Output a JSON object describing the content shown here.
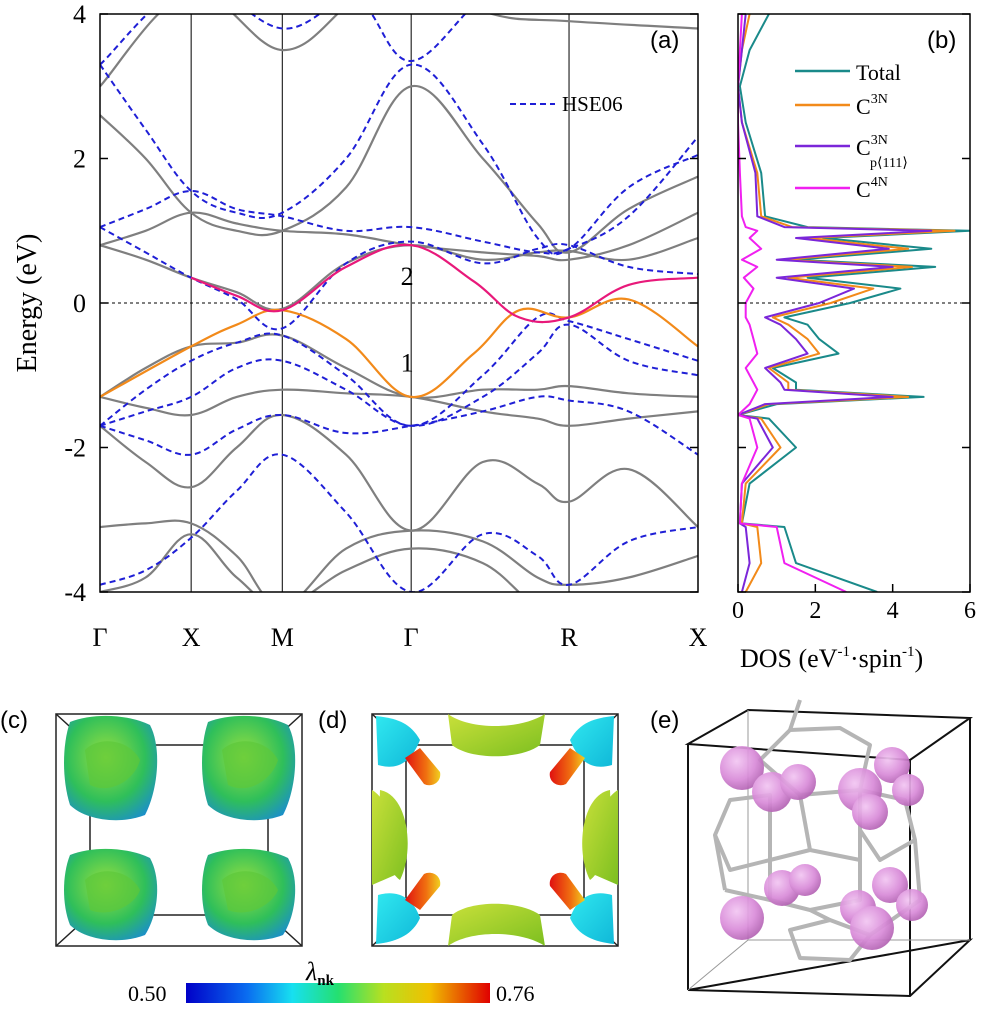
{
  "colors": {
    "pbe": "#7f7f7f",
    "hse": "#1f1fd6",
    "band_highlight_1": "#f28a1a",
    "band_highlight_2": "#e8197a",
    "dos_total": "#1a8a8a",
    "dos_c3n": "#f28a1a",
    "dos_c3n_p111": "#7b26d9",
    "dos_c4n": "#f020f0",
    "sphere": "#d98bd9",
    "frame": "#b5b5b5"
  },
  "chart_data": [
    {
      "type": "line",
      "panel_label": "(a)",
      "ylabel": "Energy (eV)",
      "ylim": [
        -4,
        4
      ],
      "yticks": [
        -4,
        -2,
        0,
        2,
        4
      ],
      "kpoints": [
        {
          "label": "Γ",
          "x": 0
        },
        {
          "label": "X",
          "x": 1
        },
        {
          "label": "M",
          "x": 2
        },
        {
          "label": "Γ",
          "x": 3.414
        },
        {
          "label": "R",
          "x": 5.146
        },
        {
          "label": "X",
          "x": 6.561
        }
      ],
      "fermi_level": 0,
      "legend": [
        {
          "name": "HSE06",
          "style": "dashed"
        }
      ],
      "band_labels": [
        {
          "text": "1",
          "x": 3.37,
          "y": -0.95
        },
        {
          "text": "2",
          "x": 3.37,
          "y": 0.25
        }
      ],
      "series": [
        {
          "kind": "highlight1",
          "x": [
            0,
            1,
            1.5,
            2,
            2.7,
            3.414,
            4.1,
            4.6,
            5.146,
            5.8,
            6.561
          ],
          "y": [
            -1.3,
            -0.6,
            -0.3,
            -0.1,
            -0.5,
            -1.3,
            -0.7,
            -0.1,
            -0.2,
            0.05,
            -0.6
          ]
        },
        {
          "kind": "highlight2",
          "x": [
            1,
            1.5,
            2,
            2.7,
            3.414,
            4.1,
            4.6,
            5.146,
            5.8,
            6.561
          ],
          "y": [
            0.35,
            0.1,
            -0.1,
            0.5,
            0.8,
            0.3,
            -0.2,
            -0.2,
            0.25,
            0.35
          ]
        },
        {
          "kind": "pbe",
          "x": [
            0,
            0.5,
            1,
            1.5,
            2,
            2.7,
            3.414,
            4.2,
            4.8,
            5.146,
            5.8,
            6.561
          ],
          "y": [
            0.8,
            0.6,
            0.35,
            0.15,
            -0.08,
            0.55,
            0.8,
            0.6,
            0.7,
            0.72,
            0.6,
            0.9
          ]
        },
        {
          "kind": "pbe",
          "x": [
            0,
            0.5,
            1,
            1.5,
            2,
            2.7,
            3.414,
            4.2,
            4.8,
            5.146,
            5.8,
            6.561
          ],
          "y": [
            0.8,
            1.0,
            1.25,
            1.1,
            1.0,
            0.95,
            0.8,
            0.7,
            0.65,
            0.6,
            0.8,
            1.25
          ]
        },
        {
          "kind": "pbe",
          "x": [
            0,
            0.5,
            1,
            1.5,
            2,
            2.7,
            3.414,
            4.2,
            4.8,
            5.146,
            5.8,
            6.561
          ],
          "y": [
            2.6,
            2.0,
            1.25,
            1.0,
            1.0,
            1.6,
            3.0,
            2.0,
            1.1,
            0.7,
            1.3,
            1.75
          ]
        },
        {
          "kind": "pbe",
          "x": [
            0,
            1,
            2,
            2.8,
            3.414,
            4.3,
            5.146,
            6.561
          ],
          "y": [
            3.0,
            4.3,
            3.5,
            4.2,
            4.5,
            4.0,
            3.9,
            3.8
          ]
        },
        {
          "kind": "pbe",
          "x": [
            0,
            0.5,
            1,
            1.5,
            2,
            2.7,
            3.414,
            4.2,
            4.8,
            5.146,
            5.8,
            6.561
          ],
          "y": [
            -1.3,
            -0.9,
            -0.6,
            -0.55,
            -0.45,
            -0.9,
            -1.3,
            -1.2,
            -1.2,
            -1.15,
            -1.25,
            -1.3
          ]
        },
        {
          "kind": "pbe",
          "x": [
            0,
            0.5,
            1,
            1.5,
            2,
            2.7,
            3.414,
            4.2,
            4.8,
            5.146,
            5.8,
            6.561
          ],
          "y": [
            -1.3,
            -1.45,
            -1.55,
            -1.3,
            -1.2,
            -1.25,
            -1.3,
            -1.5,
            -1.6,
            -1.7,
            -1.6,
            -1.5
          ]
        },
        {
          "kind": "pbe",
          "x": [
            0,
            0.5,
            1,
            1.5,
            2,
            2.7,
            3.414,
            4.2,
            4.8,
            5.146,
            5.8,
            6.561
          ],
          "y": [
            -1.7,
            -2.2,
            -2.55,
            -2.0,
            -1.55,
            -2.1,
            -3.15,
            -2.2,
            -2.5,
            -2.75,
            -2.3,
            -3.1
          ]
        },
        {
          "kind": "pbe",
          "x": [
            0,
            0.5,
            1,
            1.5,
            2,
            2.7,
            3.414,
            4.2,
            4.8,
            5.146,
            5.8,
            6.561
          ],
          "y": [
            -3.1,
            -3.05,
            -3.05,
            -3.5,
            -4.2,
            -3.4,
            -3.15,
            -3.3,
            -3.8,
            -3.9,
            -3.8,
            -3.5
          ]
        },
        {
          "kind": "pbe",
          "x": [
            0,
            0.5,
            1,
            1.5,
            2,
            2.7,
            3.414,
            4.2,
            4.8,
            5.146,
            5.8,
            6.561
          ],
          "y": [
            -4.0,
            -3.8,
            -3.2,
            -3.8,
            -4.2,
            -3.7,
            -3.4,
            -3.6,
            -4.2,
            -4.1,
            -4.2,
            -4.0
          ]
        },
        {
          "kind": "hse",
          "x": [
            0,
            0.5,
            1,
            1.5,
            2,
            2.7,
            3.414,
            4.2,
            4.8,
            5.146,
            5.8,
            6.561
          ],
          "y": [
            1.05,
            0.7,
            0.35,
            0.05,
            -0.35,
            0.55,
            0.85,
            0.55,
            0.75,
            0.8,
            0.5,
            0.4
          ]
        },
        {
          "kind": "hse",
          "x": [
            0,
            0.5,
            1,
            1.5,
            2,
            2.7,
            3.414,
            4.2,
            4.8,
            5.146,
            5.8,
            6.561
          ],
          "y": [
            1.05,
            1.3,
            1.55,
            1.3,
            1.2,
            1.0,
            1.05,
            0.85,
            0.7,
            0.75,
            1.2,
            2.3
          ]
        },
        {
          "kind": "hse",
          "x": [
            0,
            0.5,
            1,
            1.5,
            2,
            2.7,
            3.414,
            4.2,
            4.8,
            5.146,
            5.8,
            6.561
          ],
          "y": [
            3.3,
            2.4,
            1.55,
            1.25,
            1.25,
            2.0,
            3.3,
            2.2,
            0.9,
            0.75,
            1.6,
            2.05
          ]
        },
        {
          "kind": "hse",
          "x": [
            0,
            1,
            2,
            2.8,
            3.414,
            4.3,
            5.146,
            6.561
          ],
          "y": [
            3.3,
            4.4,
            3.8,
            4.2,
            3.35,
            4.3,
            4.3,
            4.2
          ]
        },
        {
          "kind": "hse",
          "x": [
            0,
            0.5,
            1,
            1.5,
            2,
            2.7,
            3.414,
            4.2,
            4.8,
            5.146,
            5.8,
            6.561
          ],
          "y": [
            -1.7,
            -1.2,
            -0.8,
            -0.55,
            -0.45,
            -1.0,
            -1.7,
            -1.0,
            -0.2,
            -0.25,
            -0.5,
            -0.8
          ]
        },
        {
          "kind": "hse",
          "x": [
            0,
            0.5,
            1,
            1.5,
            2,
            2.7,
            3.414,
            4.2,
            4.8,
            5.146,
            5.8,
            6.561
          ],
          "y": [
            -1.7,
            -1.5,
            -1.3,
            -0.9,
            -0.8,
            -1.2,
            -1.7,
            -1.3,
            -0.7,
            -0.3,
            -0.8,
            -1.0
          ]
        },
        {
          "kind": "hse",
          "x": [
            0,
            0.5,
            1,
            1.5,
            2,
            2.7,
            3.414,
            4.2,
            4.8,
            5.146,
            5.8,
            6.561
          ],
          "y": [
            -1.7,
            -1.9,
            -2.1,
            -1.75,
            -1.55,
            -1.8,
            -1.7,
            -1.5,
            -1.3,
            -1.35,
            -1.5,
            -2.1
          ]
        },
        {
          "kind": "hse",
          "x": [
            0,
            0.5,
            1,
            1.5,
            2,
            2.7,
            3.414,
            4.2,
            4.8,
            5.146,
            5.8,
            6.561
          ],
          "y": [
            -3.9,
            -3.7,
            -3.25,
            -2.6,
            -2.1,
            -2.9,
            -4.0,
            -3.2,
            -3.5,
            -3.9,
            -3.3,
            -3.1
          ]
        }
      ]
    },
    {
      "type": "line",
      "panel_label": "(b)",
      "xlabel": "DOS (eV",
      "xlabel_sup1": "-1",
      "xlabel_mid": "·spin",
      "xlabel_sup2": "-1",
      "xlabel_end": ")",
      "xlim": [
        0,
        6
      ],
      "xticks": [
        0,
        2,
        4,
        6
      ],
      "ylim": [
        -4,
        4
      ],
      "energy": [
        -4.0,
        -3.6,
        -3.1,
        -3.05,
        -2.5,
        -2.0,
        -1.6,
        -1.55,
        -1.4,
        -1.3,
        -1.2,
        -1.1,
        -0.9,
        -0.7,
        -0.5,
        -0.3,
        -0.2,
        0.0,
        0.2,
        0.35,
        0.5,
        0.6,
        0.75,
        0.9,
        1.0,
        1.05,
        1.2,
        1.8,
        2.5,
        3.0,
        3.5,
        4.0
      ],
      "legend": [
        {
          "name": "Total",
          "base": "Total"
        },
        {
          "name": "C3N",
          "base": "C",
          "sup": "3N"
        },
        {
          "name": "C3Np⟨111⟩",
          "base": "C",
          "sup": "3N",
          "sub": "p⟨111⟩"
        },
        {
          "name": "C4N",
          "base": "C",
          "sup": "4N"
        }
      ],
      "series": [
        {
          "name": "Total",
          "values": [
            3.6,
            1.5,
            1.2,
            0.1,
            0.3,
            1.5,
            0.8,
            0.0,
            1.0,
            4.8,
            1.5,
            1.5,
            0.9,
            2.6,
            2.1,
            1.8,
            1.2,
            2.9,
            4.2,
            1.8,
            5.1,
            1.5,
            5.0,
            2.2,
            6.0,
            1.8,
            0.7,
            0.6,
            0.2,
            0.05,
            0.3,
            0.8
          ]
        },
        {
          "name": "C3N",
          "values": [
            0.2,
            0.6,
            0.5,
            0.1,
            0.2,
            1.1,
            0.6,
            0.0,
            0.8,
            4.4,
            1.3,
            1.3,
            0.8,
            2.1,
            1.8,
            1.3,
            0.9,
            2.4,
            3.5,
            1.3,
            4.5,
            1.2,
            4.4,
            1.8,
            5.6,
            1.4,
            0.6,
            0.5,
            0.1,
            0.0,
            0.1,
            0.3
          ]
        },
        {
          "name": "C3Np⟨111⟩",
          "values": [
            0.1,
            0.3,
            0.2,
            0.05,
            0.1,
            0.9,
            0.5,
            0.0,
            0.7,
            4.0,
            1.2,
            1.1,
            0.7,
            1.8,
            1.5,
            1.1,
            0.7,
            2.1,
            3.0,
            1.0,
            4.0,
            1.0,
            3.9,
            1.5,
            5.0,
            1.2,
            0.5,
            0.45,
            0.1,
            0.0,
            0.1,
            0.2
          ]
        },
        {
          "name": "C4N",
          "values": [
            2.8,
            1.2,
            1.0,
            0.05,
            0.1,
            0.5,
            0.3,
            0.0,
            0.3,
            0.4,
            0.5,
            0.4,
            0.2,
            0.5,
            0.4,
            0.3,
            0.2,
            0.2,
            0.4,
            0.15,
            0.5,
            0.1,
            0.6,
            0.3,
            0.5,
            0.2,
            0.1,
            0.05,
            0.0,
            0.0,
            0.05,
            0.1
          ]
        }
      ]
    },
    {
      "type": "heatmap",
      "colorbar_label": "λ",
      "colorbar_label_sub": "nk",
      "colorbar_min_label": "0.50",
      "colorbar_max_label": "0.76",
      "range": [
        0.5,
        0.76
      ]
    }
  ],
  "panels": {
    "c": {
      "label": "(c)"
    },
    "d": {
      "label": "(d)"
    },
    "e": {
      "label": "(e)"
    }
  }
}
